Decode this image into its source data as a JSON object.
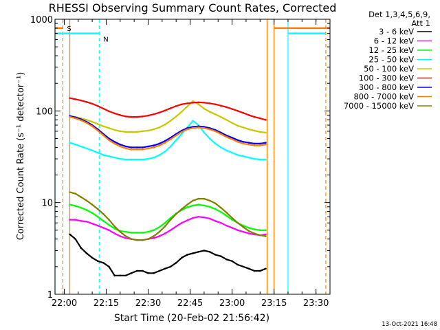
{
  "chart_data": {
    "type": "line",
    "title": "RHESSI Observing Summary Count Rates, Corrected",
    "xlabel": "Start Time (20-Feb-02 21:56:42)",
    "ylabel": "Corrected Count Rate (s⁻¹ detector⁻¹)",
    "xlim": [
      "21:56:42",
      "23:35:00"
    ],
    "ylim": [
      1,
      1000
    ],
    "yscale": "log",
    "grid": false,
    "legend_position": "top-right outside",
    "legend_header": [
      "Det 1,3,4,5,6,9,",
      "Att 1"
    ],
    "x_ticks": [
      "22:00",
      "22:15",
      "22:30",
      "22:45",
      "23:00",
      "23:15",
      "23:30"
    ],
    "y_ticks": [
      "1",
      "10",
      "100",
      "1000"
    ],
    "timestamp": "13-Oct-2021 16:48",
    "attenuator": {
      "label": "S",
      "color": "#ff8000",
      "value": 800,
      "segments": [
        [
          "21:56:42",
          "21:59:30"
        ],
        [
          "23:15:00",
          "23:35:00"
        ]
      ]
    },
    "night": {
      "label": "N",
      "color": "#00ffff",
      "value": 700,
      "segments": [
        [
          "21:56:42",
          "22:12:30"
        ],
        [
          "23:20:00",
          "23:33:30"
        ]
      ]
    },
    "vertical_markers": [
      {
        "time": "21:56:42",
        "color": "#00ffff",
        "style": "solid"
      },
      {
        "time": "21:59:30",
        "color": "#ff8000",
        "style": "dashed"
      },
      {
        "time": "22:02:00",
        "color": "#ff8000",
        "style": "solid"
      },
      {
        "time": "22:12:30",
        "color": "#00ffff",
        "style": "dashed"
      },
      {
        "time": "23:12:30",
        "color": "#ff8000",
        "style": "solid"
      },
      {
        "time": "23:15:00",
        "color": "#ff8000",
        "style": "solid"
      },
      {
        "time": "23:20:00",
        "color": "#00ffff",
        "style": "solid"
      },
      {
        "time": "23:33:30",
        "color": "#ff8000",
        "style": "dashed"
      }
    ],
    "x": [
      "22:02",
      "22:04",
      "22:06",
      "22:08",
      "22:10",
      "22:12",
      "22:14",
      "22:16",
      "22:18",
      "22:20",
      "22:22",
      "22:24",
      "22:26",
      "22:28",
      "22:30",
      "22:32",
      "22:34",
      "22:36",
      "22:38",
      "22:40",
      "22:42",
      "22:44",
      "22:46",
      "22:48",
      "22:50",
      "22:52",
      "22:54",
      "22:56",
      "22:58",
      "23:00",
      "23:02",
      "23:04",
      "23:06",
      "23:08",
      "23:10",
      "23:12"
    ],
    "series": [
      {
        "name": "3 - 6 keV",
        "color": "#000000",
        "values": [
          4.5,
          4.0,
          3.2,
          2.8,
          2.5,
          2.3,
          2.2,
          2.0,
          1.6,
          1.6,
          1.6,
          1.7,
          1.8,
          1.8,
          1.7,
          1.7,
          1.8,
          1.9,
          2.0,
          2.2,
          2.5,
          2.7,
          2.8,
          2.9,
          3.0,
          2.9,
          2.7,
          2.6,
          2.4,
          2.3,
          2.1,
          2.0,
          1.9,
          1.8,
          1.8,
          1.9
        ]
      },
      {
        "name": "6 - 12 keV",
        "color": "#ff00ff",
        "values": [
          6.5,
          6.5,
          6.3,
          6.2,
          5.9,
          5.6,
          5.3,
          5.0,
          4.6,
          4.3,
          4.1,
          4.0,
          3.9,
          3.9,
          4.0,
          4.1,
          4.3,
          4.6,
          5.0,
          5.5,
          6.0,
          6.4,
          6.8,
          7.0,
          6.9,
          6.7,
          6.3,
          6.0,
          5.6,
          5.3,
          5.0,
          4.8,
          4.6,
          4.5,
          4.4,
          4.5
        ]
      },
      {
        "name": "12 - 25 keV",
        "color": "#00ff00",
        "values": [
          9.5,
          9.2,
          8.8,
          8.3,
          7.7,
          7.0,
          6.3,
          5.7,
          5.2,
          4.9,
          4.8,
          4.7,
          4.7,
          4.7,
          4.8,
          5.0,
          5.4,
          6.0,
          6.8,
          7.6,
          8.3,
          8.9,
          9.3,
          9.5,
          9.3,
          9.0,
          8.5,
          7.9,
          7.2,
          6.5,
          6.0,
          5.6,
          5.3,
          5.1,
          5.0,
          5.0
        ]
      },
      {
        "name": "25 - 50 keV",
        "color": "#00ffff",
        "values": [
          45,
          43,
          41,
          39,
          37,
          35,
          33,
          32,
          31,
          30,
          29.5,
          29.5,
          29.5,
          29.5,
          30,
          31,
          33,
          36,
          41,
          48,
          56,
          66,
          78,
          70,
          58,
          50,
          44,
          40,
          37,
          35,
          33,
          32,
          31,
          30,
          29.5,
          29.5
        ]
      },
      {
        "name": "50 - 100 keV",
        "color": "#c8c800",
        "values": [
          88,
          86,
          83,
          80,
          76,
          72,
          68,
          65,
          62,
          60,
          59,
          59,
          59,
          60,
          61,
          63,
          66,
          71,
          78,
          87,
          98,
          112,
          128,
          118,
          106,
          98,
          92,
          86,
          80,
          74,
          69,
          66,
          63,
          61,
          59,
          58
        ]
      },
      {
        "name": "100 - 300 keV",
        "color": "#ff0000",
        "values": [
          138,
          134,
          130,
          125,
          120,
          113,
          106,
          99,
          94,
          90,
          87,
          86,
          86,
          87,
          89,
          92,
          96,
          101,
          107,
          113,
          118,
          121,
          123,
          124,
          123,
          121,
          118,
          114,
          110,
          105,
          100,
          95,
          90,
          86,
          83,
          80
        ]
      },
      {
        "name": "300 - 800 keV",
        "color": "#0000ff",
        "values": [
          88,
          85,
          81,
          76,
          70,
          63,
          56,
          50,
          46,
          43,
          41,
          40,
          40,
          40,
          41,
          42,
          44,
          47,
          51,
          56,
          61,
          65,
          67,
          68,
          67,
          65,
          62,
          58,
          54,
          51,
          48,
          46,
          45,
          44,
          44,
          45
        ]
      },
      {
        "name": "800 - 7000 keV",
        "color": "#ff8000",
        "values": [
          86,
          83,
          79,
          74,
          68,
          61,
          54,
          48,
          44,
          41,
          39,
          38,
          38,
          38,
          39,
          40,
          42,
          45,
          49,
          54,
          59,
          63,
          65,
          66,
          65,
          63,
          60,
          56,
          52,
          49,
          46,
          44,
          43,
          42,
          42,
          43
        ]
      },
      {
        "name": "7000 - 15000 keV",
        "color": "#808000",
        "values": [
          13,
          12.5,
          11.5,
          10.5,
          9.5,
          8.5,
          7.5,
          6.5,
          5.5,
          4.8,
          4.3,
          4.0,
          3.9,
          3.9,
          4.0,
          4.3,
          4.8,
          5.5,
          6.5,
          7.5,
          8.5,
          9.5,
          10.5,
          11,
          11,
          10.5,
          9.8,
          8.8,
          7.8,
          6.8,
          6.0,
          5.4,
          4.9,
          4.6,
          4.4,
          4.3
        ]
      }
    ]
  }
}
